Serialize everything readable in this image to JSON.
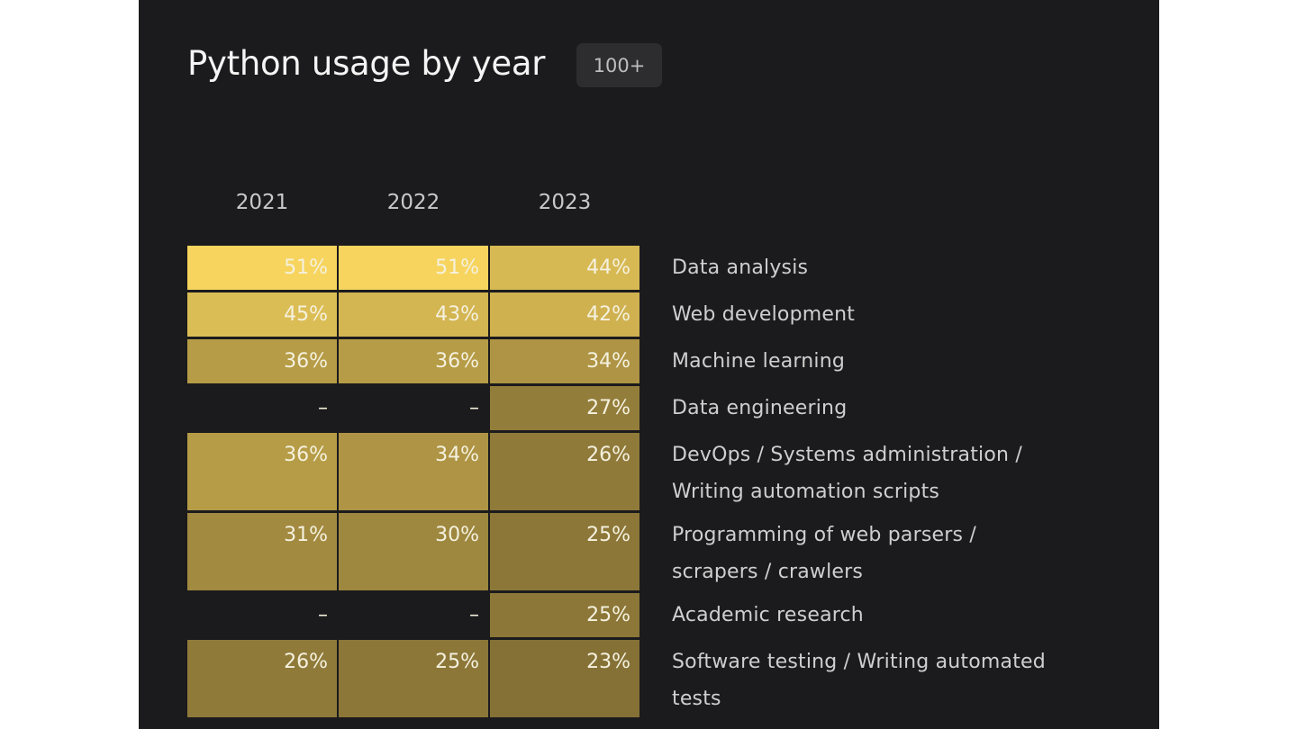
{
  "page": {
    "title": "Python usage by year",
    "badge": "100+"
  },
  "chart_data": {
    "type": "heatmap",
    "title": "Python usage by year",
    "badge": "100+",
    "columns": [
      "2021",
      "2022",
      "2023"
    ],
    "rows": [
      {
        "label": "Data analysis",
        "values": [
          51,
          51,
          44
        ]
      },
      {
        "label": "Web development",
        "values": [
          45,
          43,
          42
        ]
      },
      {
        "label": "Machine learning",
        "values": [
          36,
          36,
          34
        ]
      },
      {
        "label": "Data engineering",
        "values": [
          null,
          null,
          27
        ]
      },
      {
        "label": "DevOps / Systems administration / Writing automation scripts",
        "values": [
          36,
          34,
          26
        ]
      },
      {
        "label": "Programming of web parsers / scrapers / crawlers",
        "values": [
          31,
          30,
          25
        ]
      },
      {
        "label": "Academic research",
        "values": [
          null,
          null,
          25
        ]
      },
      {
        "label": "Software testing / Writing automated tests",
        "values": [
          26,
          25,
          23
        ]
      },
      {
        "label": "",
        "values": [
          null,
          null,
          null
        ]
      }
    ],
    "value_suffix": "%",
    "missing_symbol": "–",
    "color_scale": {
      "low": "#7d6a33",
      "high": "#f6d45e",
      "min": 20,
      "max": 51
    }
  }
}
